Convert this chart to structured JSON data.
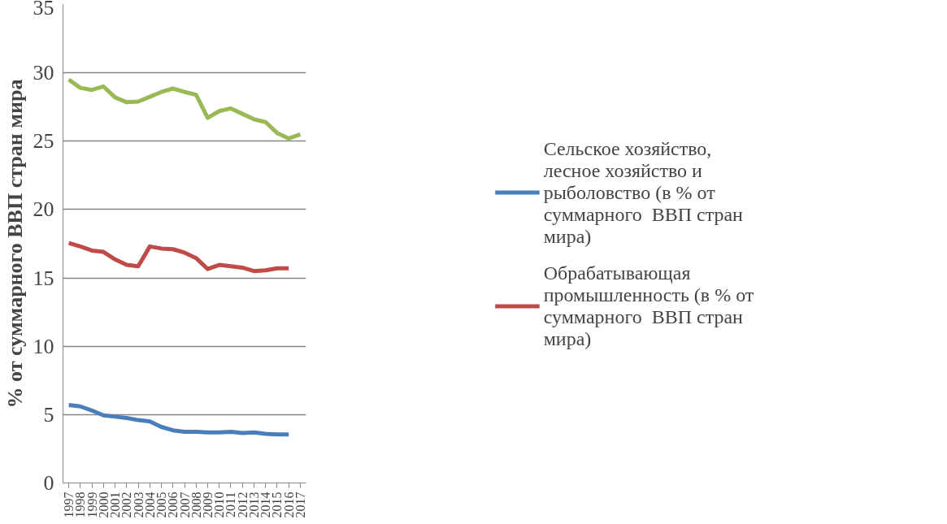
{
  "chart_data": {
    "type": "line",
    "ylabel": "% от суммарного ВВП стран мира",
    "categories": [
      "1997",
      "1998",
      "1999",
      "2000",
      "2001",
      "2002",
      "2003",
      "2004",
      "2005",
      "2006",
      "2007",
      "2008",
      "2009",
      "2010",
      "2011",
      "2012",
      "2013",
      "2014",
      "2015",
      "2016",
      "2017"
    ],
    "series": [
      {
        "name": "Сельское хозяйство, лесное хозяйство и рыболовство (в % от суммарного  ВВП стран мира)",
        "color": "#4a7ebb",
        "values": [
          5.7,
          5.6,
          5.3,
          4.95,
          4.85,
          4.75,
          4.6,
          4.5,
          4.1,
          3.85,
          3.75,
          3.75,
          3.7,
          3.7,
          3.75,
          3.65,
          3.7,
          3.6,
          3.55,
          3.55,
          null
        ]
      },
      {
        "name": "Обрабатывающая промышленность (в % от суммарного  ВВП стран мира)",
        "color": "#be4b48",
        "values": [
          17.55,
          17.3,
          17.0,
          16.9,
          16.35,
          15.95,
          15.85,
          17.3,
          17.15,
          17.1,
          16.85,
          16.45,
          15.65,
          15.95,
          15.85,
          15.75,
          15.5,
          15.55,
          15.7,
          15.7,
          null
        ]
      },
      {
        "color": "#98b954",
        "values": [
          29.5,
          28.9,
          28.75,
          29.0,
          28.2,
          27.85,
          27.9,
          28.25,
          28.6,
          28.85,
          28.6,
          28.4,
          26.7,
          27.2,
          27.4,
          27.0,
          26.6,
          26.4,
          25.6,
          25.2,
          25.5
        ]
      }
    ],
    "ylim": [
      0,
      35
    ],
    "yticks": [
      0,
      5,
      10,
      15,
      20,
      25,
      30,
      35
    ],
    "grid": "y",
    "legend": "right",
    "marker": "none",
    "line_style": "solid"
  }
}
